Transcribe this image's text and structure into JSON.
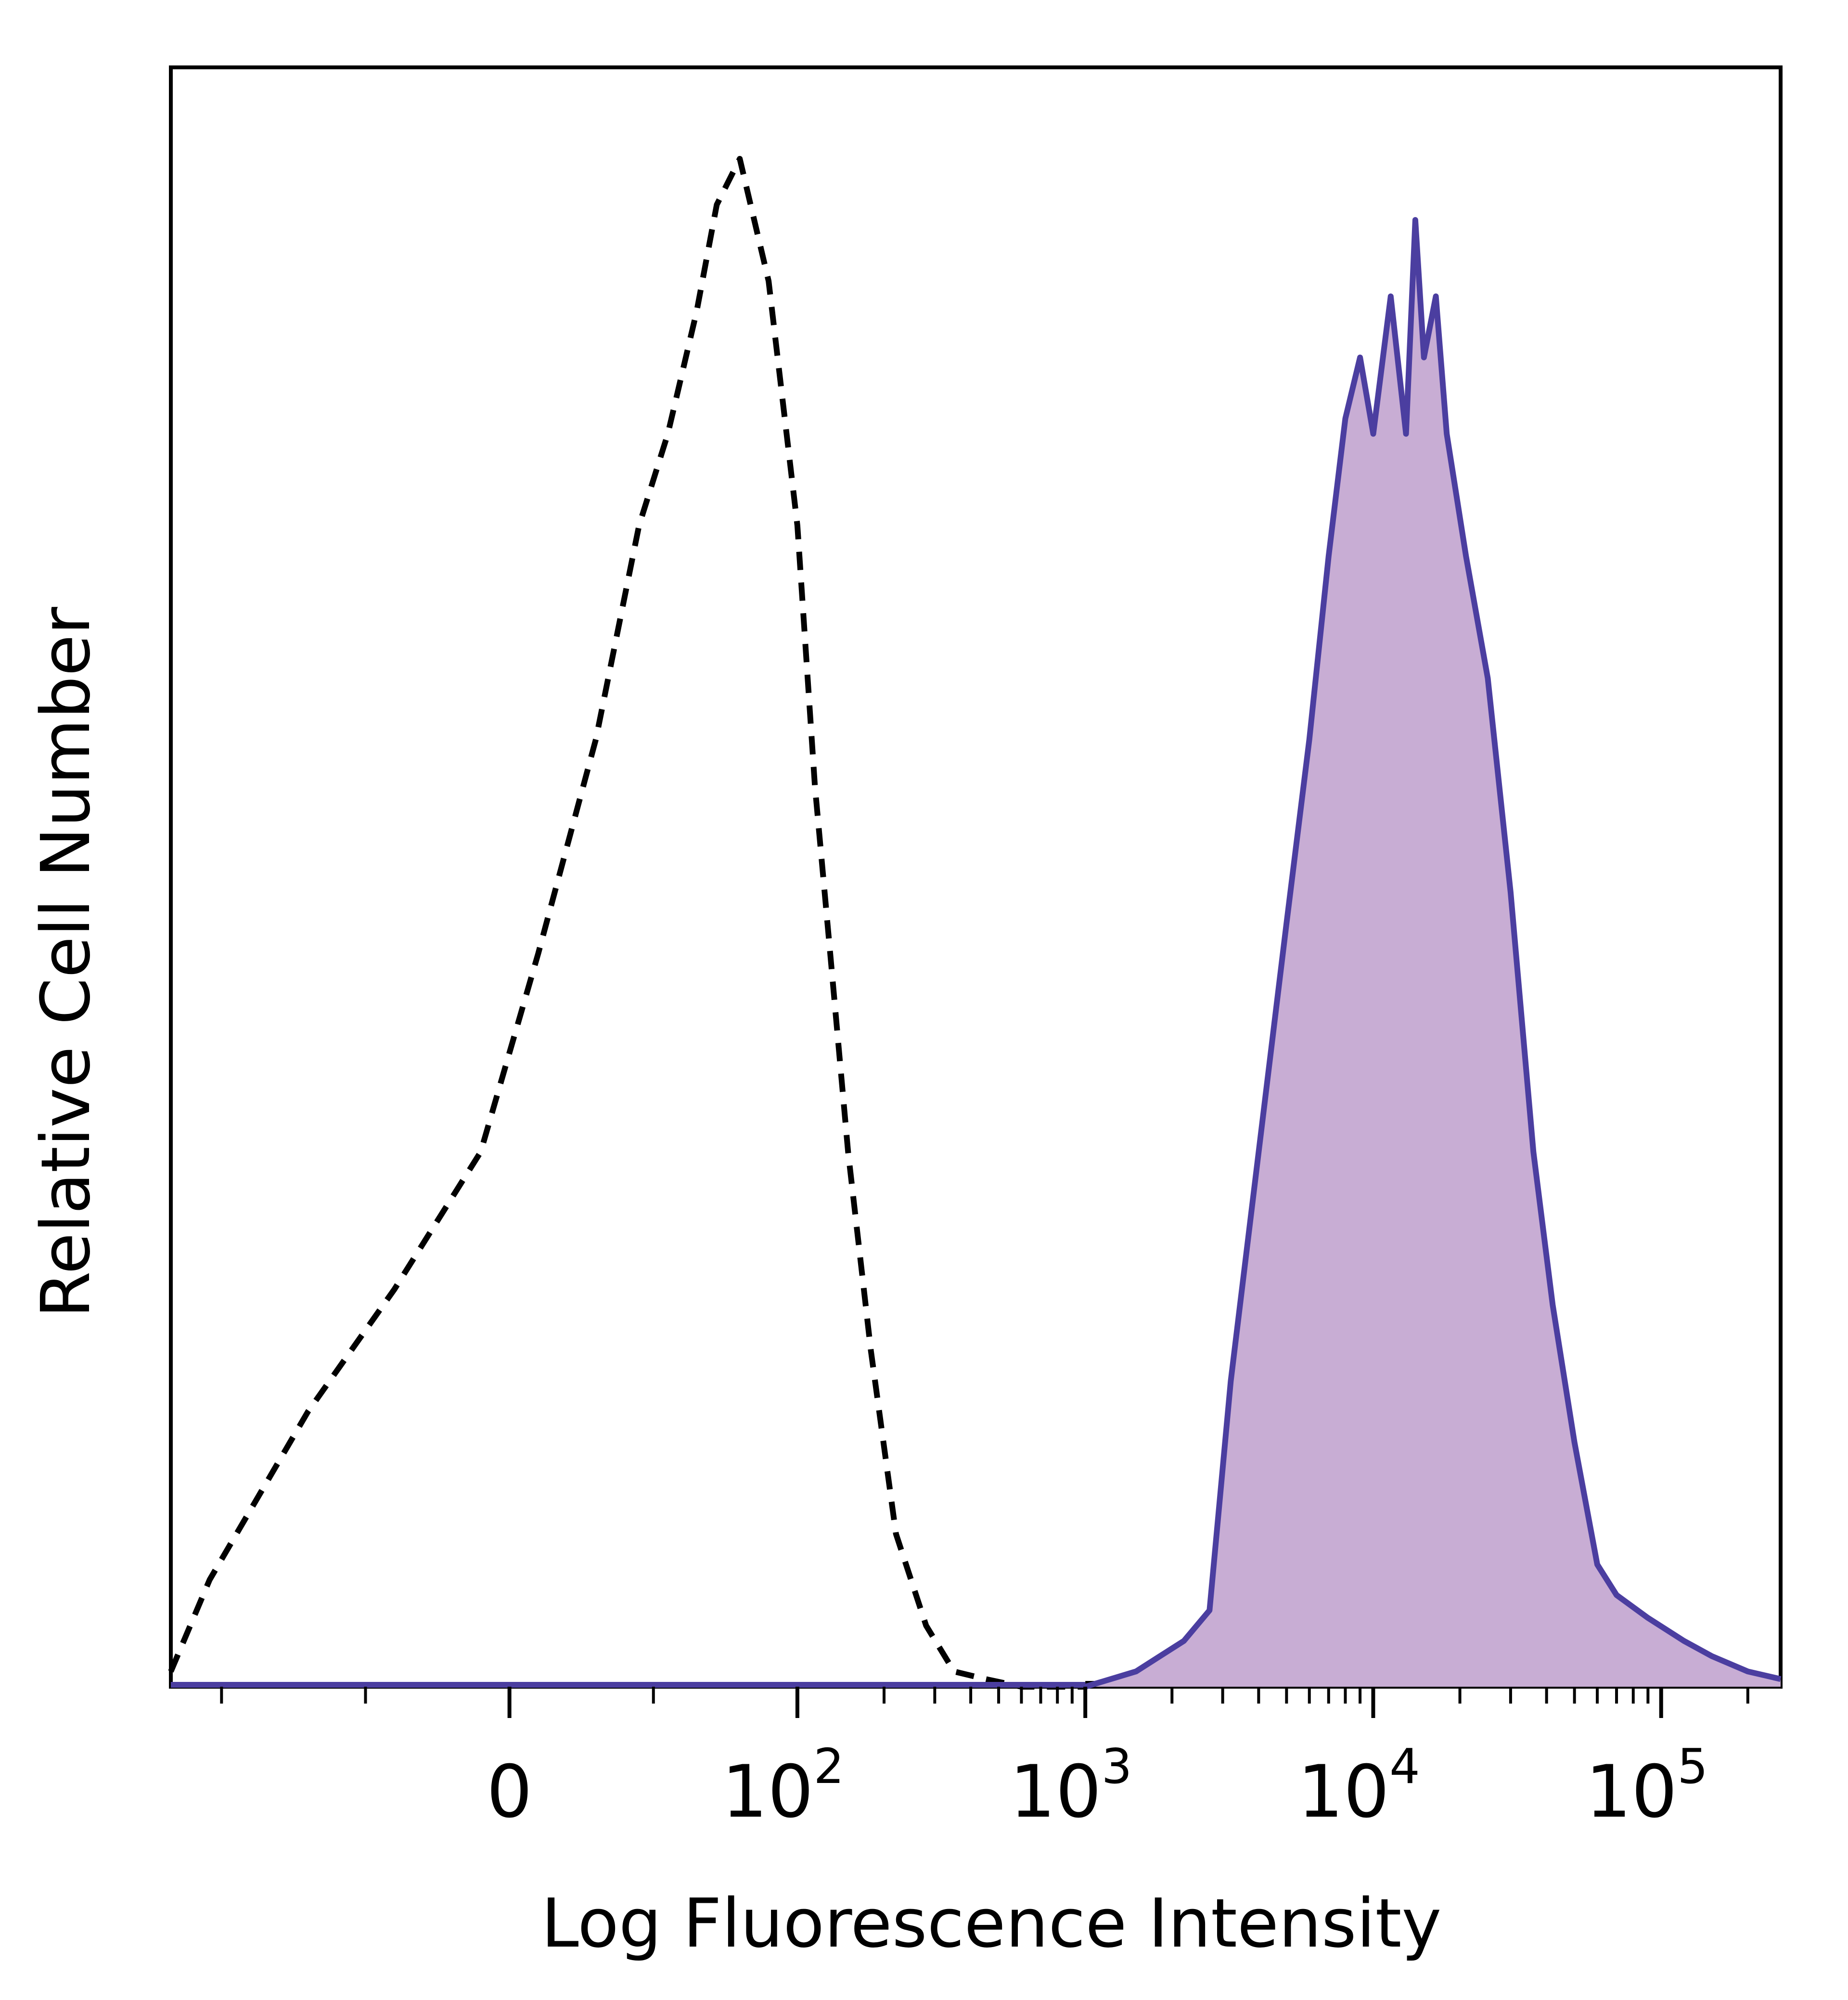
{
  "chart_data": {
    "type": "area",
    "title": "",
    "xlabel": "Log Fluorescence Intensity",
    "ylabel": "Relative Cell Number",
    "x_scale": "biexponential (log)",
    "x_tick_labels": [
      {
        "base": "0",
        "sup": ""
      },
      {
        "base": "10",
        "sup": "2"
      },
      {
        "base": "10",
        "sup": "3"
      },
      {
        "base": "10",
        "sup": "4"
      },
      {
        "base": "10",
        "sup": "5"
      }
    ],
    "grid": false,
    "legend": "none",
    "series": [
      {
        "style": "dashed-outline",
        "color": "#000000",
        "x": [
          -150,
          -110,
          -70,
          -40,
          -10,
          10,
          30,
          45,
          55,
          65,
          72,
          80,
          90,
          100,
          115,
          130,
          150,
          180,
          220,
          280,
          350,
          450,
          600,
          1000
        ],
        "y": [
          0.01,
          0.07,
          0.18,
          0.26,
          0.35,
          0.48,
          0.62,
          0.76,
          0.82,
          0.9,
          0.97,
          1.0,
          0.92,
          0.76,
          0.59,
          0.48,
          0.35,
          0.22,
          0.1,
          0.04,
          0.01,
          0.005,
          0.0,
          0.0
        ]
      },
      {
        "style": "filled",
        "color": "#4b3ea0",
        "fill": "#c8add4",
        "x": [
          1000,
          1500,
          2200,
          2700,
          3200,
          4000,
          5000,
          6000,
          7000,
          8000,
          9000,
          10000,
          11500,
          13000,
          14000,
          15000,
          16500,
          18000,
          21000,
          25000,
          30000,
          36000,
          42000,
          50000,
          60000,
          70000,
          90000,
          120000,
          150000,
          200000,
          260000
        ],
        "y": [
          0.0,
          0.01,
          0.03,
          0.05,
          0.2,
          0.35,
          0.5,
          0.62,
          0.74,
          0.83,
          0.87,
          0.82,
          0.91,
          0.82,
          0.96,
          0.87,
          0.91,
          0.82,
          0.74,
          0.66,
          0.52,
          0.35,
          0.25,
          0.16,
          0.08,
          0.06,
          0.045,
          0.03,
          0.02,
          0.01,
          0.005
        ]
      }
    ]
  }
}
